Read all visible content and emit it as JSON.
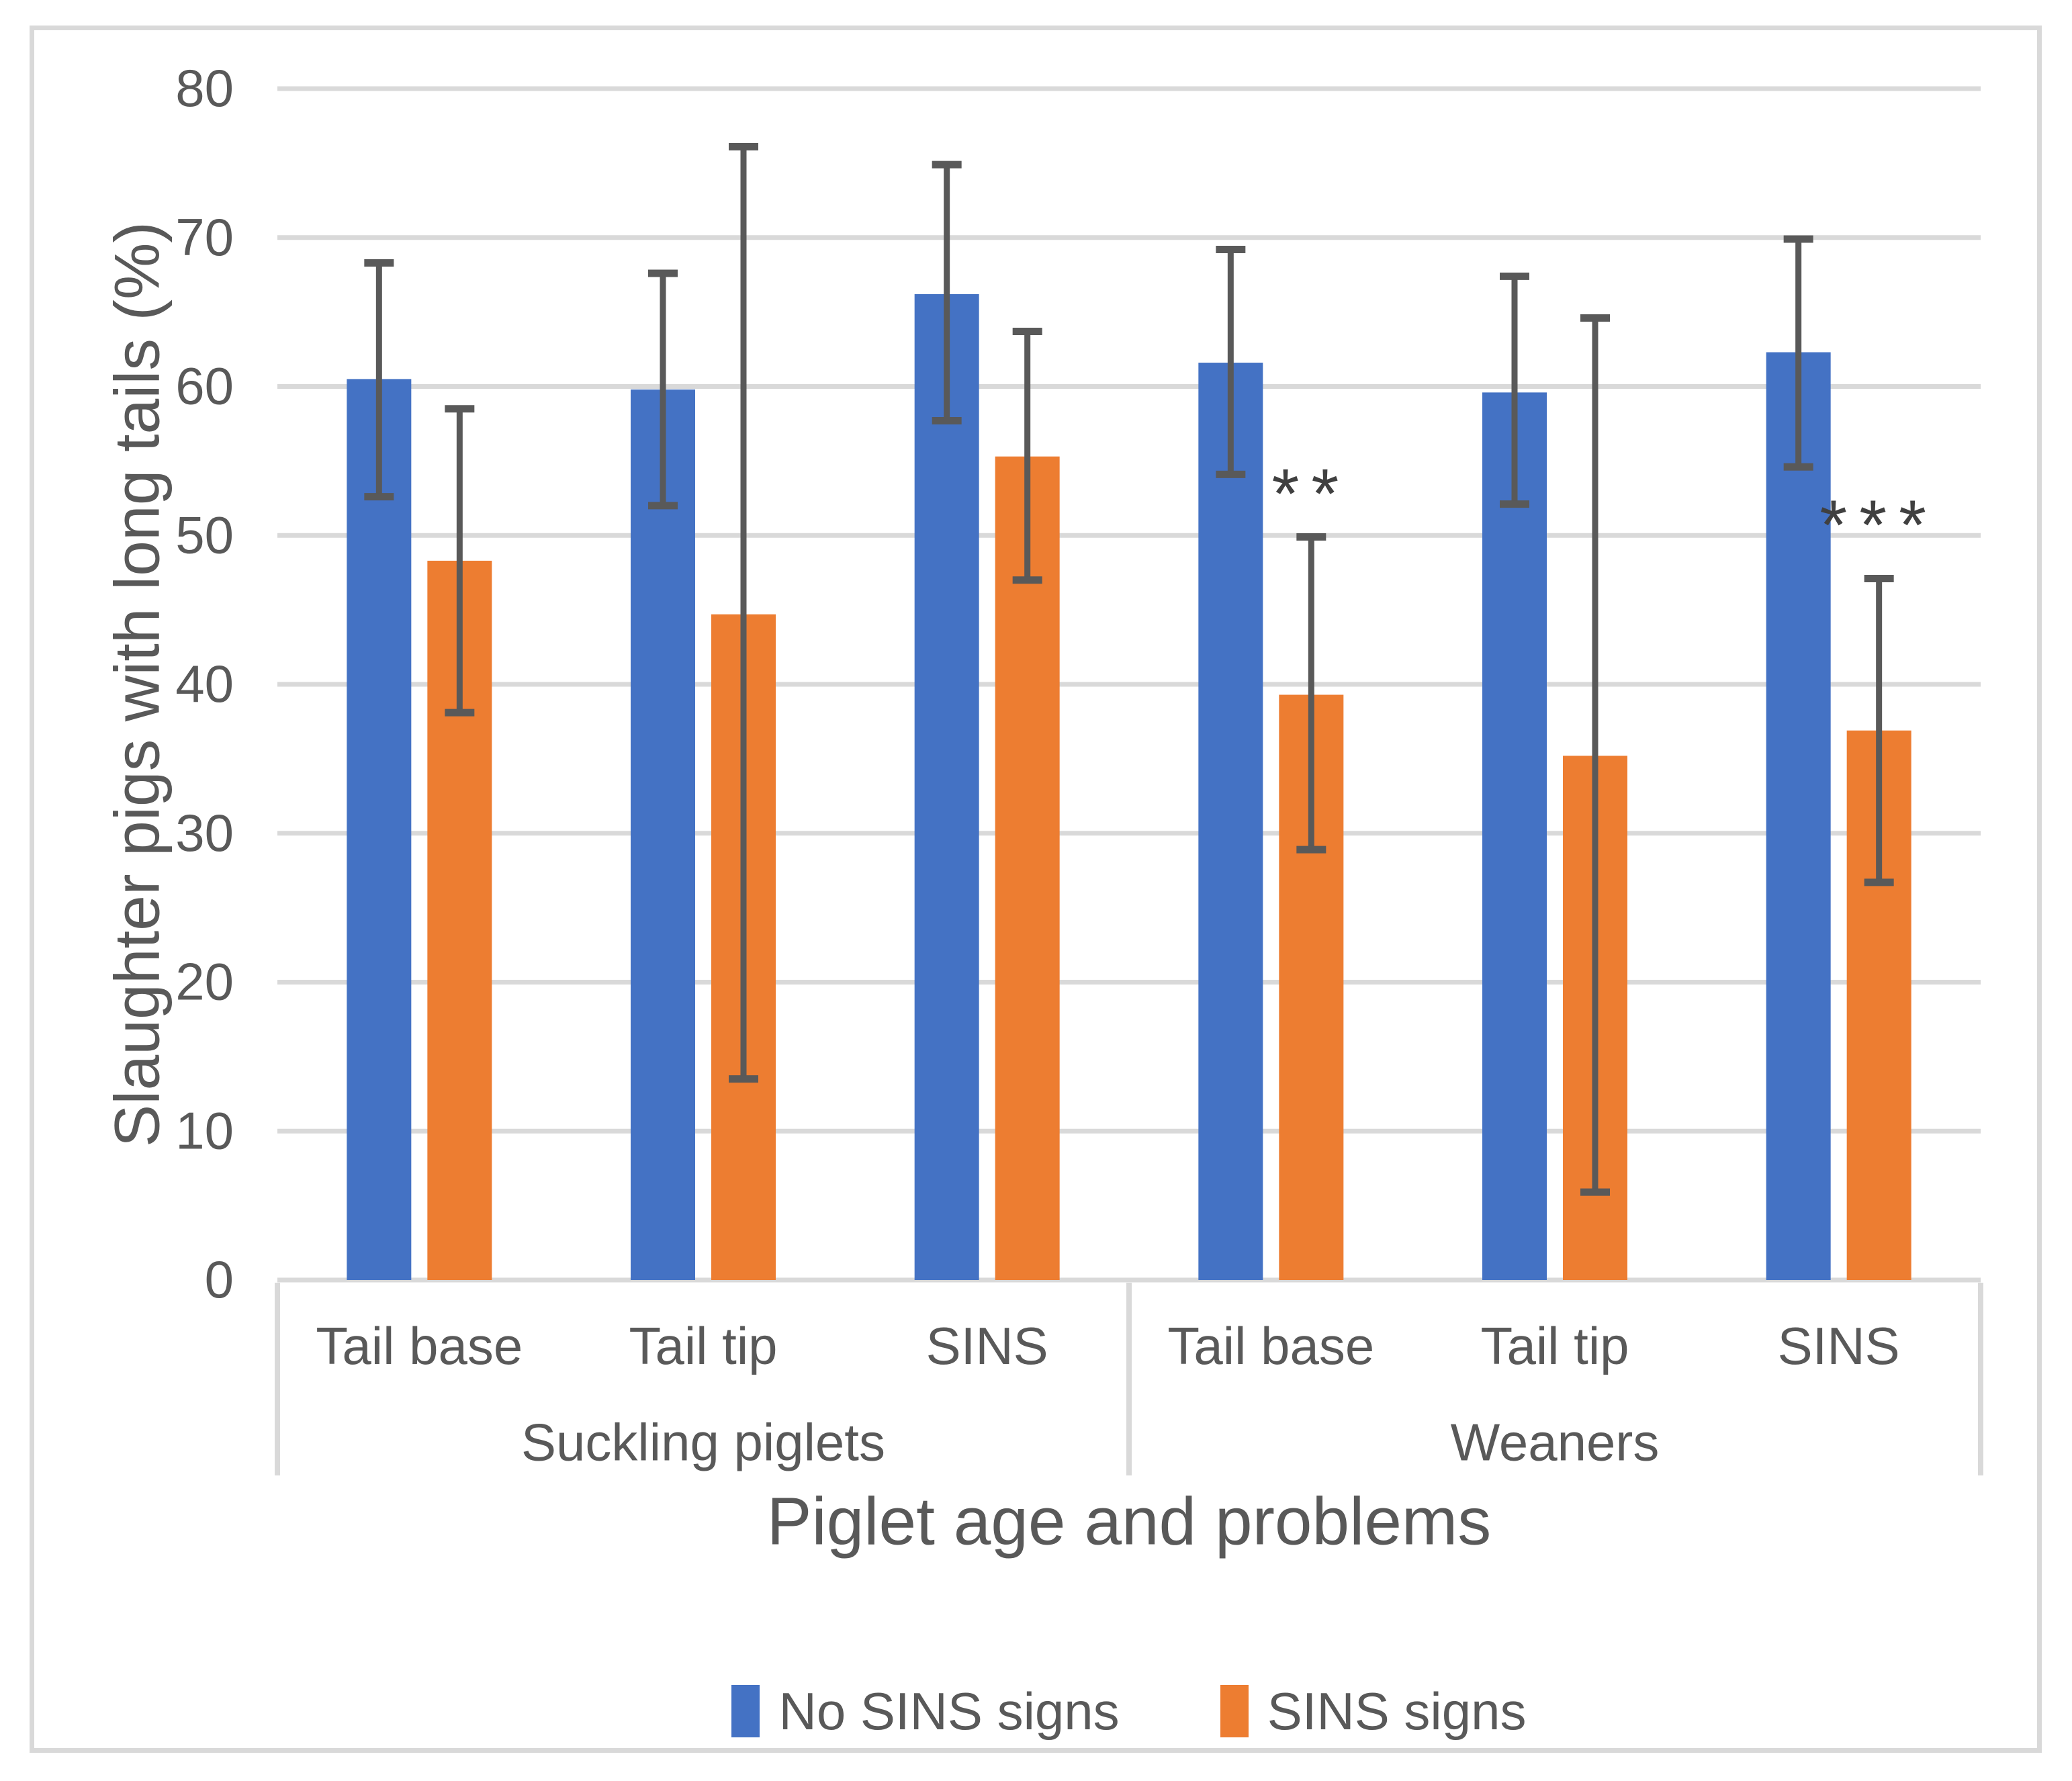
{
  "chart_data": {
    "type": "bar",
    "title": "",
    "ylabel": "Slaughter pigs with long tails (%)",
    "xlabel": "Piglet age and problems",
    "ylim": [
      0,
      80
    ],
    "y_ticks": [
      0,
      10,
      20,
      30,
      40,
      50,
      60,
      70,
      80
    ],
    "grid": true,
    "legend_position": "bottom-center",
    "groups": [
      "Suckling piglets",
      "Weaners"
    ],
    "categories": [
      {
        "label": "Tail base",
        "group": "Suckling piglets"
      },
      {
        "label": "Tail tip",
        "group": "Suckling piglets"
      },
      {
        "label": "SINS",
        "group": "Suckling piglets"
      },
      {
        "label": "Tail base",
        "group": "Weaners"
      },
      {
        "label": "Tail tip",
        "group": "Weaners"
      },
      {
        "label": "SINS",
        "group": "Weaners"
      }
    ],
    "series": [
      {
        "name": "No SINS signs",
        "color": "#4472C4",
        "values": [
          60.5,
          59.8,
          66.2,
          61.6,
          59.6,
          62.3
        ],
        "error_low": [
          52.6,
          52.0,
          57.7,
          54.1,
          52.1,
          54.6
        ],
        "error_high": [
          68.3,
          67.6,
          74.9,
          69.2,
          67.4,
          69.9
        ]
      },
      {
        "name": "SINS signs",
        "color": "#ED7D31",
        "values": [
          48.3,
          44.7,
          55.3,
          39.3,
          35.2,
          36.9
        ],
        "error_low": [
          38.1,
          13.5,
          47.0,
          28.9,
          5.9,
          26.7
        ],
        "error_high": [
          58.5,
          76.1,
          63.7,
          49.9,
          64.6,
          47.1
        ]
      }
    ],
    "annotations": [
      {
        "text": "**",
        "category_index": 3,
        "series": "SINS signs",
        "y": 53.8
      },
      {
        "text": "***",
        "category_index": 5,
        "series": "SINS signs",
        "y": 51.7
      }
    ]
  },
  "style": {
    "error_bar_color": "#595959",
    "gridline_color": "#D9D9D9",
    "axis_text_color": "#595959",
    "annotation_color": "#404040",
    "figure_border_color": "#D9D9D9",
    "background": "#FFFFFF"
  }
}
